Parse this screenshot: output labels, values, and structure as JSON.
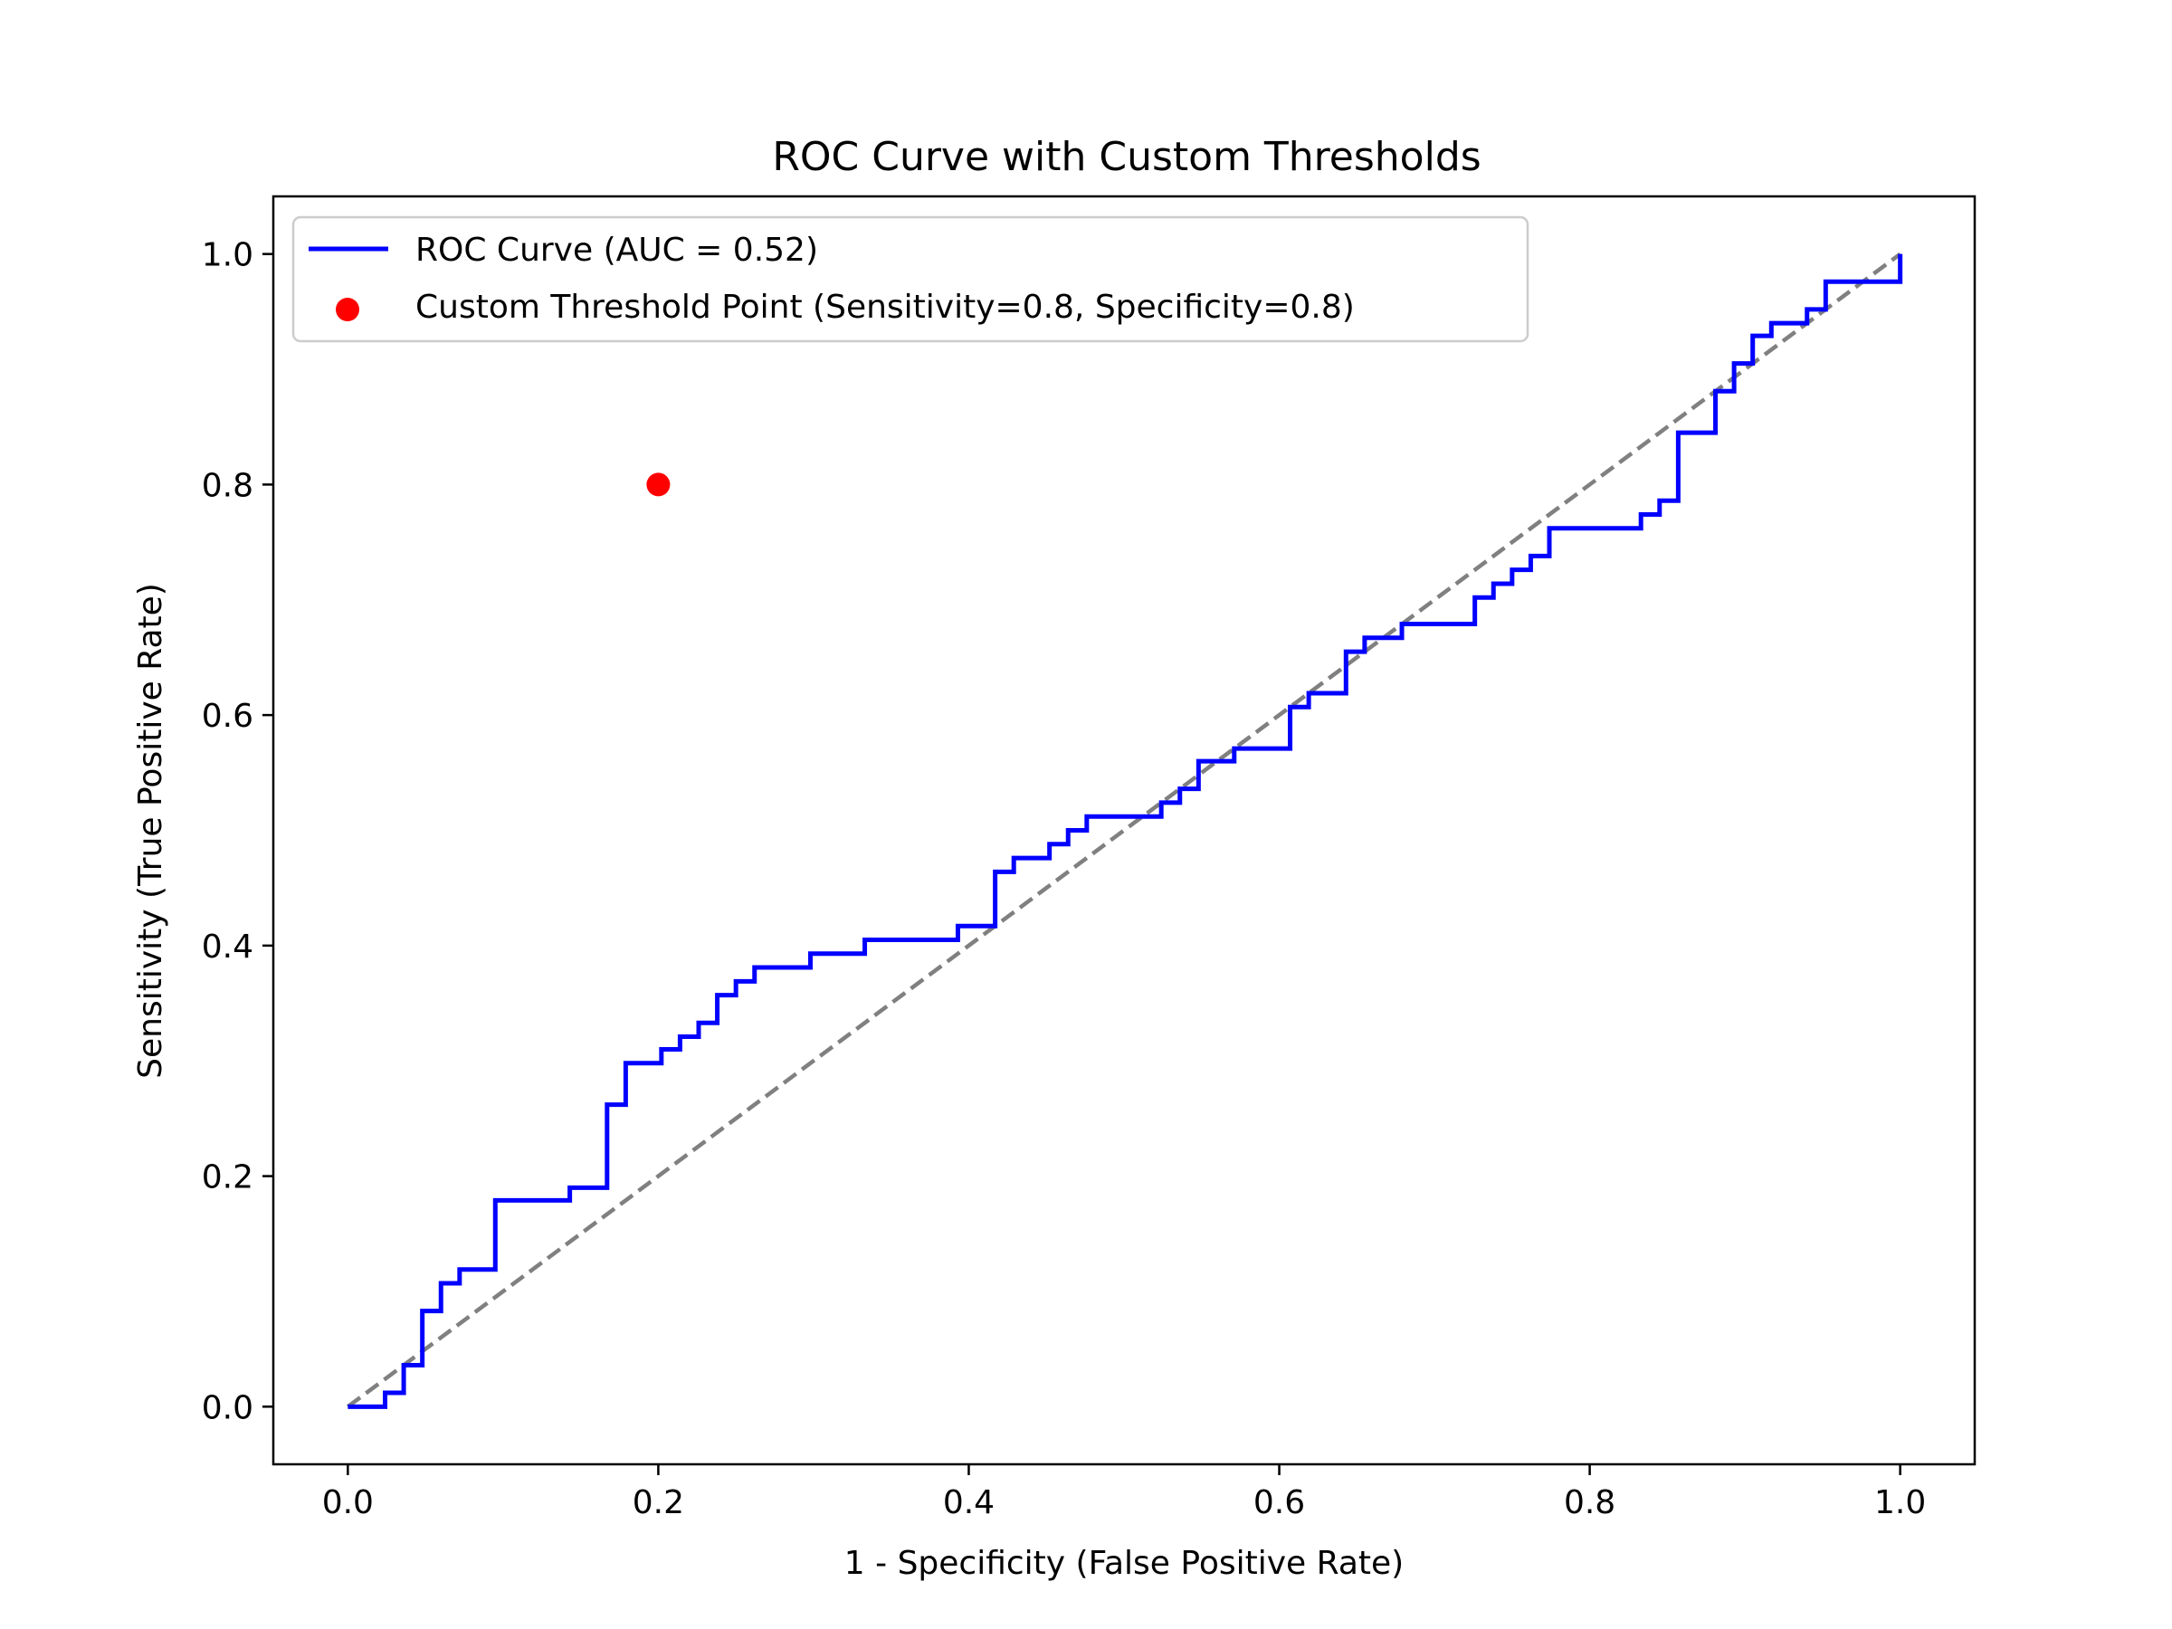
{
  "chart_data": {
    "type": "line",
    "title": "ROC Curve with Custom Thresholds",
    "xlabel": "1 - Specificity (False Positive Rate)",
    "ylabel": "Sensitivity (True Positive Rate)",
    "xlim": [
      -0.048,
      1.048
    ],
    "ylim": [
      -0.05,
      1.05
    ],
    "xticks": [
      0.0,
      0.2,
      0.4,
      0.6,
      0.8,
      1.0
    ],
    "yticks": [
      0.0,
      0.2,
      0.4,
      0.6,
      0.8,
      1.0
    ],
    "xtick_labels": [
      "0.0",
      "0.2",
      "0.4",
      "0.6",
      "0.8",
      "1.0"
    ],
    "ytick_labels": [
      "0.0",
      "0.2",
      "0.4",
      "0.6",
      "0.8",
      "1.0"
    ],
    "grid": false,
    "legend_position": "upper-left",
    "series": [
      {
        "name": "ROC Curve (AUC = 0.52)",
        "kind": "step",
        "color": "#0000ff",
        "x": [
          0.0,
          0.024,
          0.024,
          0.036,
          0.036,
          0.048,
          0.048,
          0.06,
          0.06,
          0.072,
          0.072,
          0.095,
          0.095,
          0.143,
          0.143,
          0.167,
          0.167,
          0.179,
          0.179,
          0.202,
          0.202,
          0.214,
          0.214,
          0.226,
          0.226,
          0.238,
          0.238,
          0.25,
          0.25,
          0.262,
          0.262,
          0.298,
          0.298,
          0.333,
          0.333,
          0.393,
          0.393,
          0.417,
          0.417,
          0.429,
          0.429,
          0.452,
          0.452,
          0.464,
          0.464,
          0.476,
          0.476,
          0.524,
          0.524,
          0.536,
          0.536,
          0.548,
          0.548,
          0.571,
          0.571,
          0.607,
          0.607,
          0.619,
          0.619,
          0.643,
          0.643,
          0.655,
          0.655,
          0.679,
          0.679,
          0.726,
          0.726,
          0.738,
          0.738,
          0.75,
          0.75,
          0.762,
          0.762,
          0.774,
          0.774,
          0.833,
          0.833,
          0.845,
          0.845,
          0.857,
          0.857,
          0.881,
          0.881,
          0.893,
          0.893,
          0.905,
          0.905,
          0.917,
          0.917,
          0.94,
          0.94,
          0.952,
          0.952,
          1.0,
          1.0
        ],
        "y": [
          0.0,
          0.0,
          0.012,
          0.012,
          0.036,
          0.036,
          0.083,
          0.083,
          0.107,
          0.107,
          0.119,
          0.119,
          0.179,
          0.179,
          0.19,
          0.19,
          0.262,
          0.262,
          0.298,
          0.298,
          0.31,
          0.31,
          0.321,
          0.321,
          0.333,
          0.333,
          0.357,
          0.357,
          0.369,
          0.369,
          0.381,
          0.381,
          0.393,
          0.393,
          0.405,
          0.405,
          0.417,
          0.417,
          0.464,
          0.464,
          0.476,
          0.476,
          0.488,
          0.488,
          0.5,
          0.5,
          0.512,
          0.512,
          0.524,
          0.524,
          0.536,
          0.536,
          0.56,
          0.56,
          0.571,
          0.571,
          0.607,
          0.607,
          0.619,
          0.619,
          0.655,
          0.655,
          0.667,
          0.667,
          0.679,
          0.679,
          0.702,
          0.702,
          0.714,
          0.714,
          0.726,
          0.726,
          0.738,
          0.738,
          0.762,
          0.762,
          0.774,
          0.774,
          0.786,
          0.786,
          0.845,
          0.845,
          0.881,
          0.881,
          0.905,
          0.905,
          0.929,
          0.929,
          0.94,
          0.94,
          0.952,
          0.952,
          0.976,
          0.976,
          1.0
        ]
      },
      {
        "kind": "dashed-line",
        "color": "#808080",
        "x": [
          0.0,
          1.0
        ],
        "y": [
          0.0,
          1.0
        ]
      }
    ],
    "points": [
      {
        "name": "Custom Threshold Point (Sensitivity=0.8, Specificity=0.8)",
        "color": "#ff0000",
        "x": 0.2,
        "y": 0.8
      }
    ]
  }
}
